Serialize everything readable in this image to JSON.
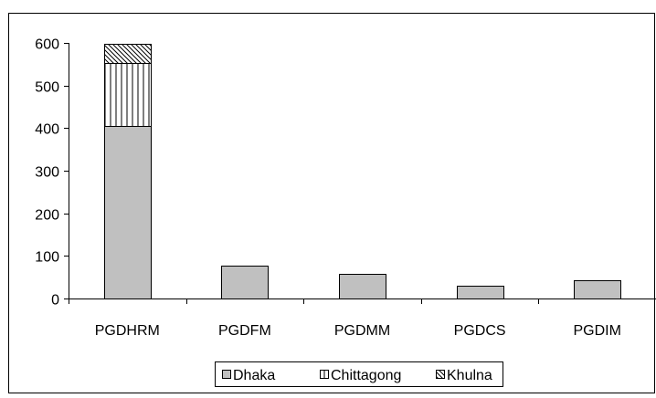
{
  "chart_data": {
    "type": "bar",
    "stacked": true,
    "categories": [
      "PGDHRM",
      "PGDFM",
      "PGDMM",
      "PGDCS",
      "PGDIM"
    ],
    "series": [
      {
        "name": "Dhaka",
        "values": [
          405,
          77,
          58,
          30,
          43
        ]
      },
      {
        "name": "Chittagong",
        "values": [
          147,
          0,
          0,
          0,
          0
        ]
      },
      {
        "name": "Khulna",
        "values": [
          46,
          0,
          0,
          0,
          0
        ]
      }
    ],
    "y_ticks": [
      "0",
      "100",
      "200",
      "300",
      "400",
      "500",
      "600"
    ],
    "ylim": [
      0,
      600
    ],
    "grid": false,
    "legend_position": "bottom",
    "colors": {
      "Dhaka": "#c0c0c0",
      "Chittagong": "#ffffff",
      "Khulna": "#ffffff",
      "stroke": "#000000"
    }
  }
}
